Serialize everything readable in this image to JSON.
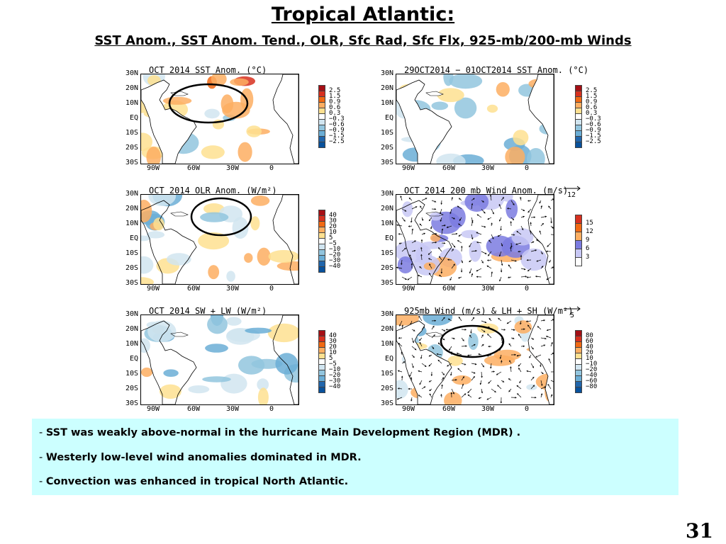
{
  "title": "Tropical Atlantic:",
  "subtitle": "SST Anom., SST Anom. Tend., OLR, Sfc Rad, Sfc Flx, 925-mb/200-mb Winds",
  "lat_labels": [
    "30N",
    "20N",
    "10N",
    "EQ",
    "10S",
    "20S",
    "30S"
  ],
  "lon_labels": [
    "90W",
    "60W",
    "30W",
    "0"
  ],
  "panels": [
    {
      "id": "sst",
      "title": "OCT 2014 SST Anom. (°C)",
      "colorbar": [
        "2.5",
        "1.5",
        "0.9",
        "0.6",
        "0.3",
        "−0.3",
        "−0.6",
        "−0.9",
        "−1.5",
        "−2.5"
      ]
    },
    {
      "id": "sst_tend",
      "title": "29OCT2014 − 01OCT2014 SST Anom. (°C)",
      "colorbar": [
        "2.5",
        "1.5",
        "0.9",
        "0.6",
        "0.3",
        "−0.3",
        "−0.6",
        "−0.9",
        "−1.5",
        "−2.5"
      ]
    },
    {
      "id": "olr",
      "title": "OCT 2014 OLR Anom. (W/m²)",
      "colorbar": [
        "40",
        "30",
        "20",
        "10",
        "5",
        "−5",
        "−10",
        "−20",
        "−30",
        "−40"
      ]
    },
    {
      "id": "wind200",
      "title": "OCT 2014 200 mb Wind Anom. (m/s)",
      "ref_vector": "12",
      "colorbar": [
        "15",
        "12",
        "9",
        "6",
        "3"
      ]
    },
    {
      "id": "swlw",
      "title": "OCT 2014 SW + LW (W/m²)",
      "colorbar": [
        "40",
        "30",
        "20",
        "10",
        "5",
        "−5",
        "−10",
        "−20",
        "−30",
        "−40"
      ]
    },
    {
      "id": "wind925",
      "title": "925mb Wind (m/s) & LH + SH (W/m²)",
      "ref_vector": "5",
      "colorbar": [
        "80",
        "60",
        "40",
        "20",
        "10",
        "−10",
        "−20",
        "−40",
        "−60",
        "−80"
      ]
    }
  ],
  "colors": {
    "div10": [
      "#a50f15",
      "#d7301f",
      "#f16913",
      "#fdae61",
      "#fee090",
      "#ffffff",
      "#d1e5f0",
      "#92c5de",
      "#6baed6",
      "#2166ac",
      "#08519c"
    ],
    "wind": [
      "#d7301f",
      "#f16913",
      "#fdae61",
      "#7b7be0",
      "#c8c8f5",
      "#ffffff"
    ],
    "textbox_bg": "#ccffff"
  },
  "bullets": [
    {
      "dash": "- ",
      "text": "SST was weakly above-normal in the hurricane Main Development Region (MDR) ."
    },
    {
      "dash": "- ",
      "text": "Westerly low-level wind anomalies dominated in MDR."
    },
    {
      "dash": "- ",
      "text": "Convection was enhanced in tropical North Atlantic."
    }
  ],
  "page_number": "31"
}
